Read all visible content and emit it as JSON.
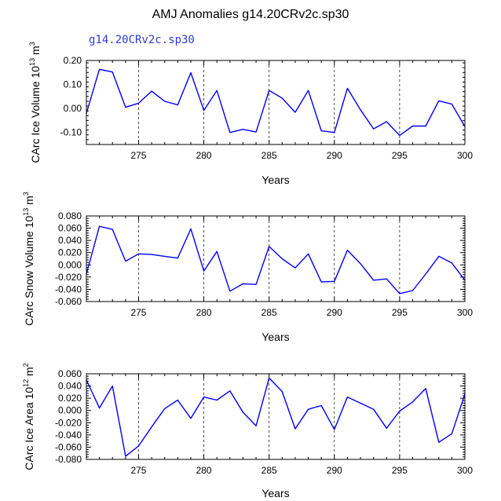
{
  "page": {
    "title": "AMJ Anomalies g14.20CRv2c.sp30",
    "subtitle": "g14.20CRv2c.sp30"
  },
  "colors": {
    "line": "#0000ff",
    "axes": "#000000",
    "grid": "#000000"
  },
  "chart_data": [
    {
      "type": "line",
      "ylabel_main": "CArc Ice Volume 10",
      "ylabel_exp": "13",
      "ylabel_unit": " m",
      "ylabel_unit_exp": "3",
      "xlabel": "Years",
      "xlim": [
        271,
        300
      ],
      "ylim": [
        -0.15,
        0.2
      ],
      "yticks": [
        {
          "v": 0.2,
          "label": "0.20"
        },
        {
          "v": 0.1,
          "label": "0.10"
        },
        {
          "v": 0.0,
          "label": "0.00"
        },
        {
          "v": -0.1,
          "label": "-0.10"
        }
      ],
      "xticks": [
        {
          "v": 275,
          "label": "275"
        },
        {
          "v": 280,
          "label": "280"
        },
        {
          "v": 285,
          "label": "285"
        },
        {
          "v": 290,
          "label": "290"
        },
        {
          "v": 295,
          "label": "295"
        },
        {
          "v": 300,
          "label": "300"
        }
      ],
      "x": [
        271,
        272,
        273,
        274,
        275,
        276,
        277,
        278,
        279,
        280,
        281,
        282,
        283,
        284,
        285,
        286,
        287,
        288,
        289,
        290,
        291,
        292,
        293,
        294,
        295,
        296,
        297,
        298,
        299,
        300
      ],
      "y": [
        -0.02,
        0.163,
        0.152,
        0.005,
        0.022,
        0.072,
        0.03,
        0.015,
        0.149,
        -0.008,
        0.075,
        -0.1,
        -0.087,
        -0.098,
        0.075,
        0.043,
        -0.016,
        0.075,
        -0.093,
        -0.1,
        0.084,
        -0.005,
        -0.085,
        -0.055,
        -0.112,
        -0.073,
        -0.073,
        0.032,
        0.018,
        -0.075
      ]
    },
    {
      "type": "line",
      "ylabel_main": "CArc Snow Volume 10",
      "ylabel_exp": "13",
      "ylabel_unit": " m",
      "ylabel_unit_exp": "3",
      "xlabel": "Years",
      "xlim": [
        271,
        300
      ],
      "ylim": [
        -0.06,
        0.08
      ],
      "yticks": [
        {
          "v": 0.08,
          "label": "0.080"
        },
        {
          "v": 0.06,
          "label": "0.060"
        },
        {
          "v": 0.04,
          "label": "0.040"
        },
        {
          "v": 0.02,
          "label": "0.020"
        },
        {
          "v": 0.0,
          "label": "0.000"
        },
        {
          "v": -0.02,
          "label": "-0.020"
        },
        {
          "v": -0.04,
          "label": "-0.040"
        },
        {
          "v": -0.06,
          "label": "-0.060"
        }
      ],
      "xticks": [
        {
          "v": 275,
          "label": "275"
        },
        {
          "v": 280,
          "label": "280"
        },
        {
          "v": 285,
          "label": "285"
        },
        {
          "v": 290,
          "label": "290"
        },
        {
          "v": 295,
          "label": "295"
        },
        {
          "v": 300,
          "label": "300"
        }
      ],
      "x": [
        271,
        272,
        273,
        274,
        275,
        276,
        277,
        278,
        279,
        280,
        281,
        282,
        283,
        284,
        285,
        286,
        287,
        288,
        289,
        290,
        291,
        292,
        293,
        294,
        295,
        296,
        297,
        298,
        299,
        300
      ],
      "y": [
        -0.015,
        0.063,
        0.058,
        0.006,
        0.018,
        0.017,
        0.014,
        0.011,
        0.059,
        -0.01,
        0.022,
        -0.043,
        -0.031,
        -0.032,
        0.03,
        0.01,
        -0.005,
        0.018,
        -0.028,
        -0.027,
        0.024,
        0.002,
        -0.025,
        -0.023,
        -0.047,
        -0.042,
        -0.015,
        0.014,
        0.003,
        -0.025
      ]
    },
    {
      "type": "line",
      "ylabel_main": "CArc Ice Area 10",
      "ylabel_exp": "12",
      "ylabel_unit": " m",
      "ylabel_unit_exp": "2",
      "xlabel": "Years",
      "xlim": [
        271,
        300
      ],
      "ylim": [
        -0.08,
        0.06
      ],
      "yticks": [
        {
          "v": 0.06,
          "label": "0.060"
        },
        {
          "v": 0.04,
          "label": "0.040"
        },
        {
          "v": 0.02,
          "label": "0.020"
        },
        {
          "v": 0.0,
          "label": "0.000"
        },
        {
          "v": -0.02,
          "label": "-0.020"
        },
        {
          "v": -0.04,
          "label": "-0.040"
        },
        {
          "v": -0.06,
          "label": "-0.060"
        },
        {
          "v": -0.08,
          "label": "-0.080"
        }
      ],
      "xticks": [
        {
          "v": 275,
          "label": "275"
        },
        {
          "v": 280,
          "label": "280"
        },
        {
          "v": 285,
          "label": "285"
        },
        {
          "v": 290,
          "label": "290"
        },
        {
          "v": 295,
          "label": "295"
        },
        {
          "v": 300,
          "label": "300"
        }
      ],
      "x": [
        271,
        272,
        273,
        274,
        275,
        276,
        277,
        278,
        279,
        280,
        281,
        282,
        283,
        284,
        285,
        286,
        287,
        288,
        289,
        290,
        291,
        292,
        293,
        294,
        295,
        296,
        297,
        298,
        299,
        300
      ],
      "y": [
        0.05,
        0.004,
        0.04,
        -0.075,
        -0.058,
        -0.027,
        0.003,
        0.017,
        -0.013,
        0.022,
        0.017,
        0.032,
        -0.003,
        -0.025,
        0.053,
        0.031,
        -0.03,
        0.002,
        0.008,
        -0.031,
        0.022,
        0.012,
        0.002,
        -0.029,
        -0.001,
        0.014,
        0.036,
        -0.052,
        -0.038,
        0.027
      ]
    }
  ]
}
